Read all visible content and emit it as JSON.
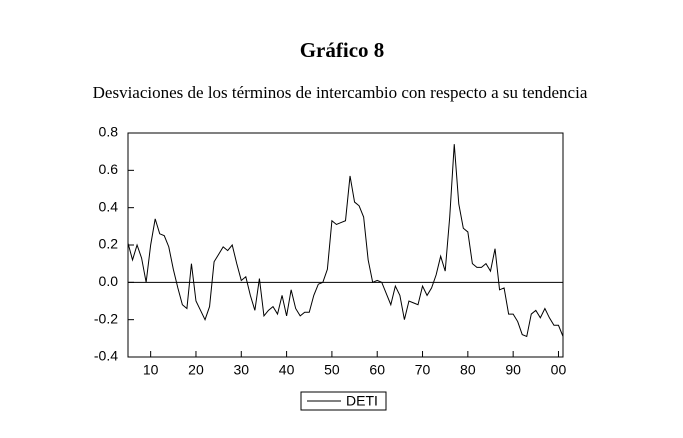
{
  "chart_data": {
    "type": "line",
    "title": "Gráfico 8",
    "subtitle": "Desviaciones de los términos de intercambio con respecto a su tendencia",
    "x": [
      5,
      6,
      7,
      8,
      9,
      10,
      11,
      12,
      13,
      14,
      15,
      16,
      17,
      18,
      19,
      20,
      21,
      22,
      23,
      24,
      25,
      26,
      27,
      28,
      29,
      30,
      31,
      32,
      33,
      34,
      35,
      36,
      37,
      38,
      39,
      40,
      41,
      42,
      43,
      44,
      45,
      46,
      47,
      48,
      49,
      50,
      51,
      52,
      53,
      54,
      55,
      56,
      57,
      58,
      59,
      60,
      61,
      62,
      63,
      64,
      65,
      66,
      67,
      68,
      69,
      70,
      71,
      72,
      73,
      74,
      75,
      76,
      77,
      78,
      79,
      80,
      81,
      82,
      83,
      84,
      85,
      86,
      87,
      88,
      89,
      90,
      91,
      92,
      93,
      94,
      95,
      96,
      97,
      98,
      99,
      100,
      101
    ],
    "series": [
      {
        "name": "DETI",
        "color": "#000000",
        "values": [
          0.21,
          0.12,
          0.2,
          0.13,
          0.0,
          0.2,
          0.34,
          0.26,
          0.25,
          0.19,
          0.07,
          -0.03,
          -0.12,
          -0.14,
          0.1,
          -0.1,
          -0.15,
          -0.2,
          -0.13,
          0.11,
          0.15,
          0.19,
          0.17,
          0.2,
          0.1,
          0.01,
          0.03,
          -0.07,
          -0.15,
          0.02,
          -0.18,
          -0.15,
          -0.13,
          -0.17,
          -0.07,
          -0.18,
          -0.04,
          -0.14,
          -0.18,
          -0.16,
          -0.16,
          -0.07,
          -0.01,
          0.0,
          0.07,
          0.33,
          0.31,
          0.32,
          0.33,
          0.57,
          0.43,
          0.41,
          0.35,
          0.12,
          0.0,
          0.01,
          0.0,
          -0.06,
          -0.12,
          -0.02,
          -0.07,
          -0.2,
          -0.1,
          -0.11,
          -0.12,
          -0.02,
          -0.07,
          -0.03,
          0.04,
          0.14,
          0.06,
          0.35,
          0.74,
          0.42,
          0.29,
          0.27,
          0.1,
          0.08,
          0.08,
          0.1,
          0.06,
          0.18,
          -0.04,
          -0.03,
          -0.17,
          -0.17,
          -0.21,
          -0.28,
          -0.29,
          -0.17,
          -0.15,
          -0.19,
          -0.14,
          -0.19,
          -0.23,
          -0.23,
          -0.29
        ]
      }
    ],
    "xlim": [
      5,
      101
    ],
    "xticks": [
      10,
      20,
      30,
      40,
      50,
      60,
      70,
      80,
      90,
      {
        "value": 100,
        "label": "00"
      }
    ],
    "ylim": [
      -0.4,
      0.8
    ],
    "yticks": [
      -0.4,
      -0.2,
      {
        "value": 0,
        "label": "0.0"
      },
      0.2,
      0.4,
      0.6,
      0.8
    ],
    "zero_line": true,
    "legend": "bottom"
  }
}
